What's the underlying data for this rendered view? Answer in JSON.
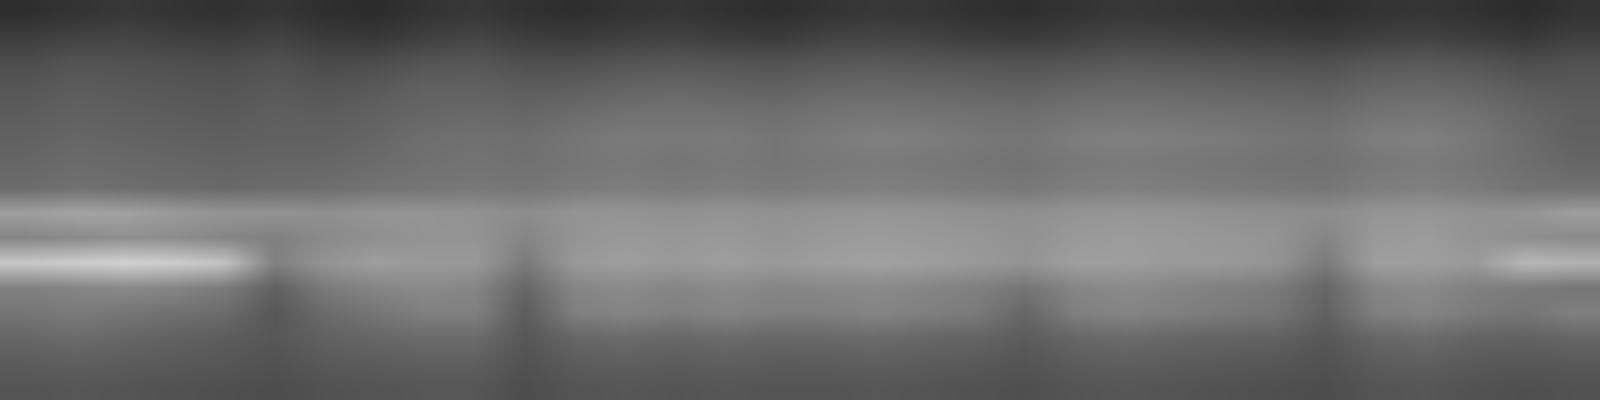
{
  "chart_data": {
    "type": "heatmap",
    "tick_labels": false,
    "grid": false,
    "zlim": [
      0,
      100
    ],
    "cells": [
      [
        18,
        20,
        22,
        20,
        19,
        21,
        18,
        17,
        20,
        22,
        19,
        18,
        20,
        21,
        19,
        18,
        20,
        22,
        21,
        19,
        18,
        20,
        22,
        21,
        20,
        19,
        18,
        20,
        21,
        19,
        17,
        20
      ],
      [
        24,
        26,
        27,
        25,
        24,
        26,
        23,
        22,
        25,
        27,
        24,
        23,
        25,
        26,
        24,
        23,
        26,
        27,
        26,
        24,
        23,
        25,
        27,
        26,
        25,
        24,
        23,
        25,
        26,
        24,
        22,
        25
      ],
      [
        30,
        33,
        32,
        31,
        30,
        32,
        29,
        30,
        33,
        34,
        31,
        31,
        33,
        34,
        33,
        32,
        34,
        35,
        34,
        33,
        32,
        33,
        35,
        34,
        33,
        32,
        31,
        34,
        35,
        33,
        30,
        32
      ],
      [
        34,
        36,
        35,
        34,
        33,
        35,
        33,
        35,
        38,
        38,
        36,
        37,
        39,
        40,
        39,
        38,
        40,
        41,
        40,
        39,
        38,
        40,
        41,
        40,
        39,
        38,
        37,
        40,
        41,
        39,
        36,
        35
      ],
      [
        36,
        38,
        37,
        36,
        35,
        37,
        36,
        38,
        40,
        41,
        40,
        42,
        44,
        45,
        44,
        43,
        45,
        46,
        45,
        44,
        43,
        45,
        46,
        45,
        44,
        43,
        42,
        45,
        46,
        44,
        40,
        37
      ],
      [
        38,
        40,
        39,
        38,
        37,
        38,
        38,
        40,
        43,
        44,
        43,
        46,
        48,
        47,
        48,
        46,
        48,
        50,
        49,
        47,
        46,
        49,
        50,
        49,
        48,
        46,
        45,
        49,
        50,
        47,
        42,
        38
      ],
      [
        40,
        42,
        41,
        40,
        39,
        40,
        40,
        42,
        44,
        45,
        44,
        46,
        47,
        46,
        47,
        46,
        47,
        48,
        47,
        46,
        45,
        47,
        48,
        47,
        46,
        45,
        44,
        47,
        48,
        46,
        43,
        40
      ],
      [
        42,
        44,
        43,
        42,
        41,
        42,
        43,
        45,
        46,
        47,
        46,
        48,
        49,
        48,
        49,
        48,
        49,
        50,
        49,
        48,
        47,
        49,
        50,
        49,
        48,
        47,
        46,
        49,
        50,
        48,
        45,
        44
      ],
      [
        62,
        64,
        63,
        60,
        58,
        58,
        56,
        58,
        58,
        57,
        55,
        58,
        58,
        57,
        58,
        57,
        58,
        59,
        58,
        57,
        56,
        58,
        59,
        58,
        57,
        56,
        55,
        58,
        59,
        57,
        58,
        62
      ],
      [
        52,
        54,
        56,
        55,
        52,
        50,
        54,
        56,
        58,
        58,
        52,
        58,
        60,
        59,
        60,
        58,
        60,
        61,
        60,
        59,
        57,
        60,
        61,
        60,
        59,
        58,
        52,
        60,
        61,
        58,
        56,
        54
      ],
      [
        78,
        80,
        82,
        80,
        76,
        50,
        58,
        62,
        60,
        60,
        48,
        60,
        62,
        60,
        62,
        60,
        62,
        63,
        62,
        60,
        58,
        62,
        62,
        60,
        60,
        58,
        48,
        62,
        62,
        60,
        72,
        70
      ],
      [
        50,
        52,
        54,
        52,
        48,
        38,
        48,
        52,
        54,
        52,
        40,
        52,
        54,
        52,
        54,
        52,
        53,
        54,
        52,
        50,
        46,
        52,
        54,
        52,
        50,
        48,
        40,
        52,
        54,
        50,
        48,
        46
      ],
      [
        46,
        48,
        46,
        44,
        42,
        34,
        42,
        46,
        50,
        50,
        36,
        50,
        52,
        50,
        52,
        50,
        50,
        52,
        50,
        48,
        40,
        50,
        52,
        50,
        48,
        46,
        38,
        50,
        52,
        48,
        46,
        50
      ],
      [
        40,
        42,
        40,
        38,
        36,
        34,
        38,
        40,
        42,
        42,
        34,
        40,
        42,
        40,
        42,
        40,
        41,
        42,
        40,
        39,
        36,
        40,
        42,
        40,
        39,
        38,
        34,
        40,
        42,
        39,
        38,
        40
      ],
      [
        36,
        37,
        36,
        35,
        34,
        32,
        35,
        36,
        37,
        37,
        32,
        36,
        37,
        36,
        37,
        36,
        36,
        37,
        36,
        35,
        33,
        36,
        37,
        36,
        35,
        34,
        32,
        36,
        37,
        35,
        34,
        35
      ],
      [
        33,
        34,
        33,
        32,
        31,
        30,
        32,
        33,
        34,
        34,
        30,
        33,
        34,
        33,
        34,
        33,
        33,
        34,
        33,
        32,
        31,
        33,
        34,
        33,
        32,
        31,
        30,
        33,
        34,
        32,
        31,
        32
      ]
    ]
  }
}
